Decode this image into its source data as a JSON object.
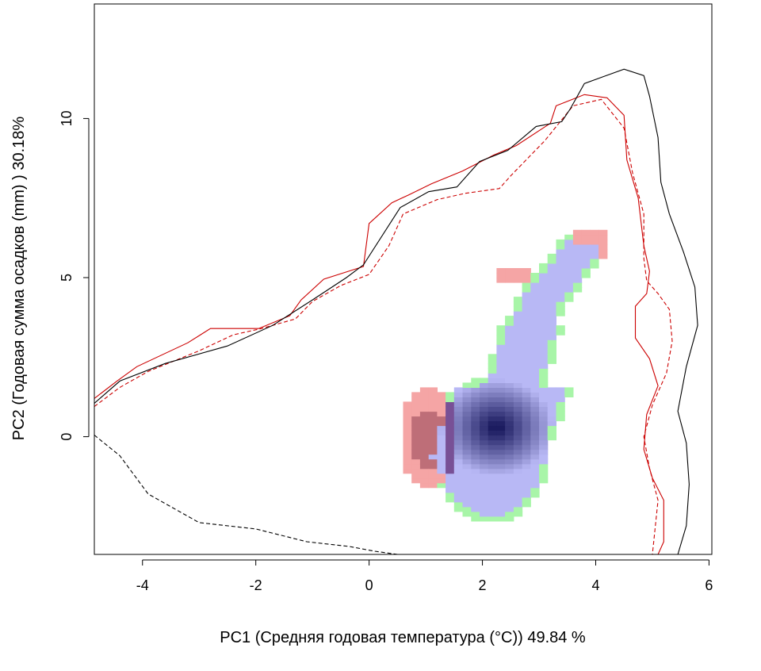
{
  "chart_data": {
    "type": "heatmap",
    "title": "",
    "xlabel": "PC1 (Средняя годовая температура (°C)) 49.84 %",
    "ylabel": "PC2 (Годовая сумма осадков  (mm) ) 30.18%",
    "xlim": [
      -4.85,
      6.05
    ],
    "ylim": [
      -3.7,
      13.6
    ],
    "x_ticks": [
      -4,
      -2,
      0,
      2,
      4,
      6
    ],
    "y_ticks": [
      0,
      5,
      10
    ],
    "x_tick_labels": [
      "-4",
      "-2",
      "0",
      "2",
      "4",
      "6"
    ],
    "y_tick_labels": [
      "0",
      "5",
      "10"
    ],
    "grid": false,
    "legend": "none",
    "colors": {
      "overlap_low": "#b8b8f5",
      "overlap_high": "#101055",
      "only_first": "#f5a5a5",
      "only_second": "#a8f5a8",
      "first_outline": "#cc0000",
      "second_outline": "#000000"
    },
    "series": [
      {
        "kind": "outline",
        "color": "#cc0000",
        "dash": "solid",
        "points": [
          [
            -4.85,
            1.2
          ],
          [
            -4.45,
            1.75
          ],
          [
            -4.1,
            2.2
          ],
          [
            -3.2,
            2.95
          ],
          [
            -2.8,
            3.4
          ],
          [
            -1.95,
            3.4
          ],
          [
            -1.4,
            3.8
          ],
          [
            -1.2,
            4.3
          ],
          [
            -0.8,
            4.95
          ],
          [
            -0.1,
            5.35
          ],
          [
            0,
            6.7
          ],
          [
            0.4,
            7.35
          ],
          [
            0.7,
            7.6
          ],
          [
            1.1,
            7.95
          ],
          [
            1.65,
            8.35
          ],
          [
            2.2,
            8.85
          ],
          [
            2.6,
            9.15
          ],
          [
            3.2,
            9.85
          ],
          [
            3.3,
            10.4
          ],
          [
            3.8,
            10.75
          ],
          [
            4.2,
            10.65
          ],
          [
            4.5,
            10.1
          ],
          [
            4.55,
            8.7
          ],
          [
            4.75,
            7.5
          ],
          [
            4.85,
            6
          ],
          [
            4.95,
            5.2
          ],
          [
            4.9,
            4.5
          ],
          [
            4.7,
            4.1
          ],
          [
            4.7,
            3.1
          ],
          [
            4.95,
            2.45
          ],
          [
            5.1,
            1.6
          ],
          [
            4.9,
            0.7
          ],
          [
            4.85,
            -0.4
          ],
          [
            5,
            -1.3
          ],
          [
            5.2,
            -2
          ],
          [
            5.2,
            -3.3
          ],
          [
            5.1,
            -3.7
          ]
        ]
      },
      {
        "kind": "outline",
        "color": "#cc0000",
        "dash": "dashed",
        "points": [
          [
            -4.85,
            0.95
          ],
          [
            -4.4,
            1.55
          ],
          [
            -3.9,
            2.05
          ],
          [
            -3,
            2.7
          ],
          [
            -2.4,
            3.2
          ],
          [
            -1.9,
            3.4
          ],
          [
            -1.3,
            3.7
          ],
          [
            -1,
            4.25
          ],
          [
            -0.5,
            4.75
          ],
          [
            0,
            5.1
          ],
          [
            0.35,
            6.0
          ],
          [
            0.6,
            7.0
          ],
          [
            1.2,
            7.45
          ],
          [
            1.7,
            7.65
          ],
          [
            2.3,
            7.8
          ],
          [
            2.5,
            8.2
          ],
          [
            3.1,
            9.3
          ],
          [
            3.6,
            10.4
          ],
          [
            4.1,
            10.6
          ],
          [
            4.5,
            9.7
          ],
          [
            4.65,
            8.3
          ],
          [
            4.85,
            7.0
          ],
          [
            4.85,
            5.6
          ],
          [
            4.9,
            4.9
          ],
          [
            5.1,
            4.5
          ],
          [
            5.3,
            4.0
          ],
          [
            5.35,
            3.0
          ],
          [
            5.25,
            2.0
          ],
          [
            5.0,
            1.0
          ],
          [
            4.85,
            0
          ],
          [
            4.95,
            -1.0
          ],
          [
            5.1,
            -2.0
          ],
          [
            5.0,
            -3.7
          ]
        ]
      },
      {
        "kind": "outline",
        "color": "#000000",
        "dash": "solid",
        "points": [
          [
            -4.85,
            1.05
          ],
          [
            -4.4,
            1.75
          ],
          [
            -3.6,
            2.3
          ],
          [
            -2.5,
            2.85
          ],
          [
            -1.7,
            3.5
          ],
          [
            -1.0,
            4.3
          ],
          [
            -0.4,
            5.0
          ],
          [
            -0.1,
            5.4
          ],
          [
            0.55,
            7.2
          ],
          [
            1.05,
            7.7
          ],
          [
            1.55,
            7.85
          ],
          [
            1.95,
            8.65
          ],
          [
            2.45,
            9.0
          ],
          [
            2.95,
            9.75
          ],
          [
            3.4,
            9.9
          ],
          [
            3.55,
            10.3
          ],
          [
            3.8,
            11.1
          ],
          [
            4.5,
            11.55
          ],
          [
            4.85,
            11.35
          ],
          [
            4.95,
            10.7
          ],
          [
            5.1,
            9.4
          ],
          [
            5.15,
            8.0
          ],
          [
            5.3,
            7.0
          ],
          [
            5.55,
            5.8
          ],
          [
            5.75,
            4.7
          ],
          [
            5.8,
            3.5
          ],
          [
            5.6,
            2.2
          ],
          [
            5.45,
            0.8
          ],
          [
            5.6,
            -0.2
          ],
          [
            5.65,
            -1.5
          ],
          [
            5.6,
            -2.8
          ],
          [
            5.45,
            -3.7
          ]
        ]
      },
      {
        "kind": "outline",
        "color": "#000000",
        "dash": "dashed",
        "points": [
          [
            -4.85,
            0.05
          ],
          [
            -4.4,
            -0.6
          ],
          [
            -3.9,
            -1.8
          ],
          [
            -3.0,
            -2.7
          ],
          [
            -2.0,
            -2.9
          ],
          [
            -1.1,
            -3.3
          ],
          [
            -0.35,
            -3.45
          ],
          [
            0.1,
            -3.6
          ],
          [
            0.5,
            -3.7
          ]
        ]
      }
    ],
    "density": {
      "kind": "grid",
      "cell_size": 0.15,
      "core_peak": [
        2.25,
        0.3
      ],
      "regions": [
        "overlap",
        "only_first",
        "only_second"
      ]
    }
  }
}
